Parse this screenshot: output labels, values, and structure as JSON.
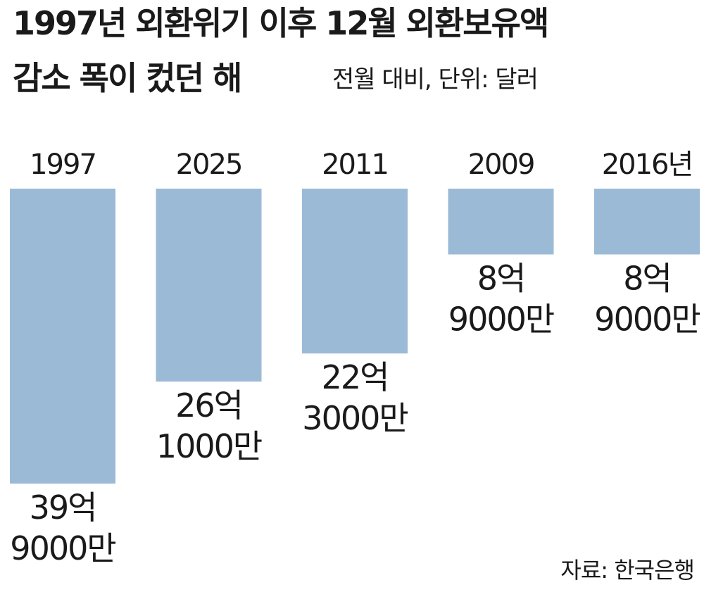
{
  "title_line1": "1997년 외환위기 이후 12월 외환보유액",
  "title_line2": "감소 폭이 컸던 해",
  "subtitle": "전월 대비, 단위: 달러",
  "source": "자료: 한국은행",
  "colors": {
    "bar": "#9bbad6",
    "text": "#1a1a1a",
    "background": "#ffffff"
  },
  "chart_data": {
    "type": "bar",
    "orientation": "downward",
    "categories": [
      "1997",
      "2025",
      "2011",
      "2009",
      "2016년"
    ],
    "values": [
      39.9,
      26.1,
      22.3,
      8.9,
      8.9
    ],
    "value_unit": "억 달러",
    "value_labels": [
      [
        "39억",
        "9000만"
      ],
      [
        "26억",
        "1000만"
      ],
      [
        "22억",
        "3000만"
      ],
      [
        "8억",
        "9000만"
      ],
      [
        "8억",
        "9000만"
      ]
    ],
    "title": "1997년 외환위기 이후 12월 외환보유액 감소 폭이 컸던 해",
    "subtitle": "전월 대비, 단위: 달러",
    "grid": false,
    "legend": "none"
  }
}
